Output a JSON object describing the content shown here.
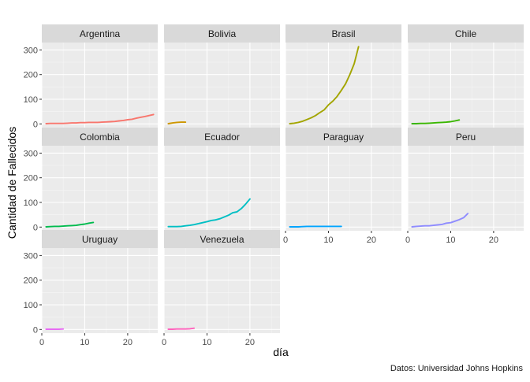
{
  "chart_data": {
    "type": "line",
    "layout": "facet-grid",
    "ylabel": "Cantidad de Fallecidos",
    "xlabel": "día",
    "caption": "Datos: Universidad Johns Hopkins",
    "xlim": [
      0,
      27
    ],
    "ylim": [
      -15,
      330
    ],
    "x_ticks": [
      0,
      10,
      20
    ],
    "y_ticks": [
      0,
      100,
      200,
      300
    ],
    "grid": true,
    "legend": "none",
    "panels": [
      {
        "name": "Argentina",
        "color": "#F8766D",
        "x": [
          1,
          2,
          3,
          4,
          5,
          6,
          7,
          8,
          9,
          10,
          11,
          12,
          13,
          14,
          15,
          16,
          17,
          18,
          19,
          20,
          21,
          22,
          23,
          24,
          25,
          26
        ],
        "y": [
          1,
          2,
          2,
          2,
          2,
          3,
          4,
          4,
          5,
          5,
          6,
          6,
          6,
          7,
          8,
          9,
          10,
          12,
          14,
          17,
          19,
          23,
          27,
          30,
          34,
          38
        ]
      },
      {
        "name": "Bolivia",
        "color": "#CD9600",
        "x": [
          1,
          2,
          3,
          4,
          5
        ],
        "y": [
          1,
          4,
          6,
          7,
          7
        ]
      },
      {
        "name": "Brasil",
        "color": "#A3A500",
        "x": [
          1,
          2,
          3,
          4,
          5,
          6,
          7,
          8,
          9,
          10,
          11,
          12,
          13,
          14,
          15,
          16,
          17
        ],
        "y": [
          1,
          3,
          6,
          11,
          18,
          25,
          34,
          46,
          57,
          77,
          92,
          111,
          136,
          163,
          201,
          244,
          313
        ]
      },
      {
        "name": "Chile",
        "color": "#39B600",
        "x": [
          1,
          2,
          3,
          4,
          5,
          6,
          7,
          8,
          9,
          10,
          11,
          12
        ],
        "y": [
          1,
          1,
          2,
          2,
          3,
          4,
          5,
          6,
          7,
          9,
          12,
          16
        ]
      },
      {
        "name": "Colombia",
        "color": "#00BB4E",
        "x": [
          1,
          2,
          3,
          4,
          5,
          6,
          7,
          8,
          9,
          10,
          11,
          12
        ],
        "y": [
          1,
          2,
          3,
          3,
          4,
          5,
          6,
          7,
          10,
          12,
          16,
          19
        ]
      },
      {
        "name": "Ecuador",
        "color": "#00BFC4",
        "x": [
          1,
          2,
          3,
          4,
          5,
          6,
          7,
          8,
          9,
          10,
          11,
          12,
          13,
          14,
          15,
          16,
          17,
          18,
          19,
          20
        ],
        "y": [
          2,
          2,
          2,
          3,
          5,
          7,
          10,
          14,
          18,
          22,
          27,
          29,
          34,
          41,
          48,
          58,
          62,
          75,
          93,
          114
        ]
      },
      {
        "name": "Paraguay",
        "color": "#00A5FF",
        "x": [
          1,
          2,
          3,
          4,
          5,
          6,
          7,
          8,
          9,
          10,
          11,
          12,
          13
        ],
        "y": [
          1,
          1,
          1,
          2,
          3,
          3,
          3,
          3,
          3,
          3,
          3,
          3,
          3
        ]
      },
      {
        "name": "Peru",
        "color": "#8F8CFF",
        "x": [
          1,
          2,
          3,
          4,
          5,
          6,
          7,
          8,
          9,
          10,
          11,
          12,
          13,
          14
        ],
        "y": [
          1,
          3,
          4,
          5,
          5,
          7,
          9,
          11,
          16,
          18,
          24,
          30,
          38,
          55
        ]
      },
      {
        "name": "Uruguay",
        "color": "#E76BF3",
        "x": [
          1,
          2,
          3,
          4,
          5
        ],
        "y": [
          1,
          1,
          1,
          1,
          2
        ]
      },
      {
        "name": "Venezuela",
        "color": "#FF62BC",
        "x": [
          1,
          2,
          3,
          4,
          5,
          6,
          7
        ],
        "y": [
          1,
          1,
          2,
          2,
          2,
          3,
          5
        ]
      }
    ]
  }
}
